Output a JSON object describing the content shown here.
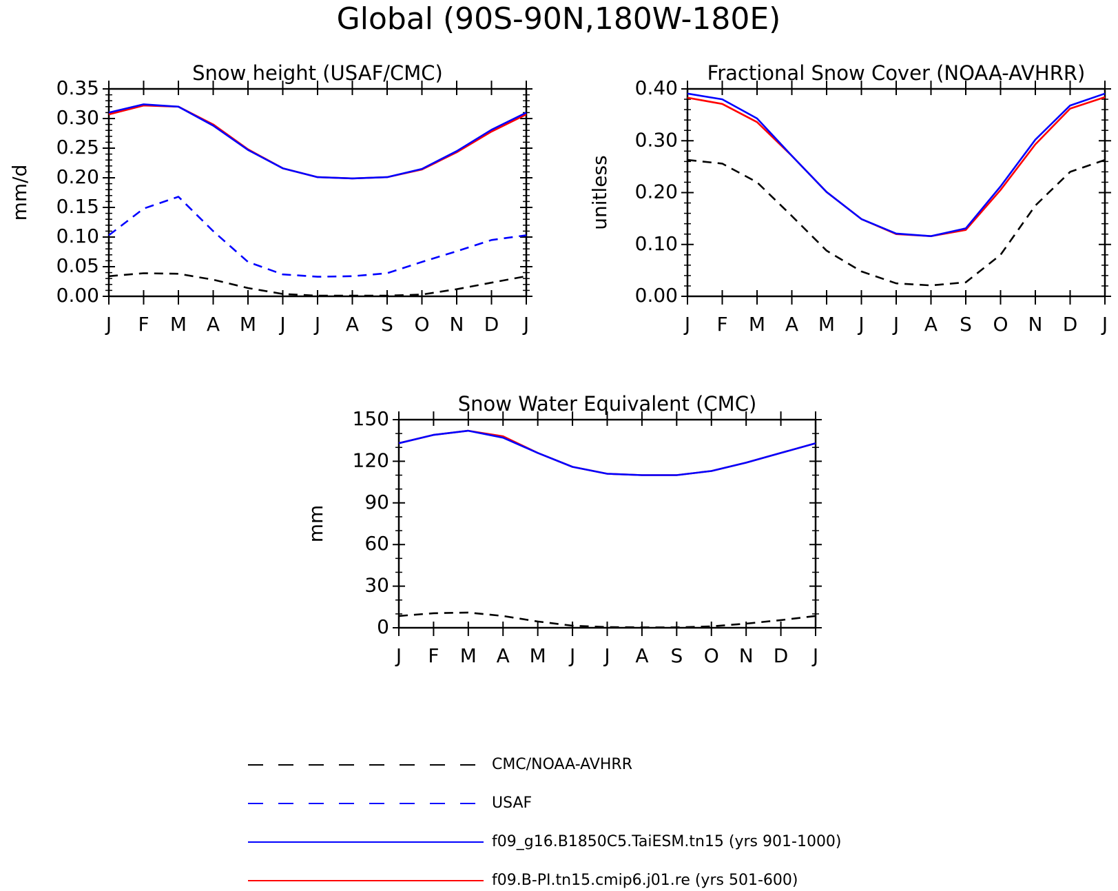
{
  "main_title": "Global (90S-90N,180W-180E)",
  "month_labels": [
    "J",
    "F",
    "M",
    "A",
    "M",
    "J",
    "J",
    "A",
    "S",
    "O",
    "N",
    "D",
    "J"
  ],
  "legend": [
    {
      "label": "CMC/NOAA-AVHRR",
      "color": "#000000",
      "dashed": true
    },
    {
      "label": "USAF",
      "color": "#0000ff",
      "dashed": true
    },
    {
      "label": "f09_g16.B1850C5.TaiESM.tn15 (yrs 901-1000)",
      "color": "#0000ff",
      "dashed": false
    },
    {
      "label": "f09.B-PI.tn15.cmip6.j01.re (yrs 501-600)",
      "color": "#ff0000",
      "dashed": false
    }
  ],
  "chart_data": [
    {
      "type": "line",
      "title": "Snow height (USAF/CMC)",
      "ylabel": "mm/d",
      "xlabel": "",
      "ylim": [
        0,
        0.35
      ],
      "yticks": [
        "0.00",
        "0.05",
        "0.10",
        "0.15",
        "0.20",
        "0.25",
        "0.30",
        "0.35"
      ],
      "x": [
        "J",
        "F",
        "M",
        "A",
        "M",
        "J",
        "J",
        "A",
        "S",
        "O",
        "N",
        "D",
        "J"
      ],
      "series": [
        {
          "name": "CMC/NOAA-AVHRR",
          "color": "#000000",
          "dashed": true,
          "values": [
            0.034,
            0.039,
            0.038,
            0.028,
            0.014,
            0.004,
            0.001,
            0.001,
            0.001,
            0.003,
            0.012,
            0.023,
            0.034
          ]
        },
        {
          "name": "USAF",
          "color": "#0000ff",
          "dashed": true,
          "values": [
            0.103,
            0.148,
            0.168,
            0.11,
            0.058,
            0.037,
            0.033,
            0.034,
            0.039,
            0.058,
            0.076,
            0.095,
            0.103
          ]
        },
        {
          "name": "f09.B-PI.tn15.cmip6.j01.re (yrs 501-600)",
          "color": "#ff0000",
          "dashed": false,
          "values": [
            0.307,
            0.322,
            0.32,
            0.29,
            0.248,
            0.216,
            0.201,
            0.199,
            0.201,
            0.214,
            0.243,
            0.278,
            0.307
          ]
        },
        {
          "name": "f09_g16.B1850C5.TaiESM.tn15 (yrs 901-1000)",
          "color": "#0000ff",
          "dashed": false,
          "values": [
            0.31,
            0.324,
            0.32,
            0.288,
            0.247,
            0.216,
            0.201,
            0.199,
            0.201,
            0.215,
            0.245,
            0.281,
            0.31
          ]
        }
      ]
    },
    {
      "type": "line",
      "title": "Fractional Snow Cover (NOAA-AVHRR)",
      "ylabel": "unitless",
      "xlabel": "",
      "ylim": [
        0,
        0.4
      ],
      "yticks": [
        "0.00",
        "0.10",
        "0.20",
        "0.30",
        "0.40"
      ],
      "x": [
        "J",
        "F",
        "M",
        "A",
        "M",
        "J",
        "J",
        "A",
        "S",
        "O",
        "N",
        "D",
        "J"
      ],
      "series": [
        {
          "name": "CMC/NOAA-AVHRR",
          "color": "#000000",
          "dashed": true,
          "values": [
            0.263,
            0.256,
            0.22,
            0.155,
            0.088,
            0.048,
            0.025,
            0.021,
            0.027,
            0.08,
            0.175,
            0.24,
            0.263
          ]
        },
        {
          "name": "f09.B-PI.tn15.cmip6.j01.re (yrs 501-600)",
          "color": "#ff0000",
          "dashed": false,
          "values": [
            0.383,
            0.371,
            0.336,
            0.271,
            0.201,
            0.149,
            0.12,
            0.116,
            0.128,
            0.205,
            0.293,
            0.362,
            0.384
          ]
        },
        {
          "name": "f09_g16.B1850C5.TaiESM.tn15 (yrs 901-1000)",
          "color": "#0000ff",
          "dashed": false,
          "values": [
            0.391,
            0.38,
            0.343,
            0.271,
            0.201,
            0.149,
            0.121,
            0.116,
            0.131,
            0.212,
            0.302,
            0.368,
            0.391
          ]
        }
      ]
    },
    {
      "type": "line",
      "title": "Snow Water Equivalent (CMC)",
      "ylabel": "mm",
      "xlabel": "",
      "ylim": [
        0,
        150
      ],
      "yticks": [
        "0",
        "30",
        "60",
        "90",
        "120",
        "150"
      ],
      "x": [
        "J",
        "F",
        "M",
        "A",
        "M",
        "J",
        "J",
        "A",
        "S",
        "O",
        "N",
        "D",
        "J"
      ],
      "series": [
        {
          "name": "CMC/NOAA-AVHRR",
          "color": "#000000",
          "dashed": true,
          "values": [
            8.5,
            10.5,
            11.0,
            8.5,
            4.5,
            1.5,
            0.5,
            0.3,
            0.3,
            1.0,
            3.0,
            5.5,
            8.5
          ]
        },
        {
          "name": "f09.B-PI.tn15.cmip6.j01.re (yrs 501-600)",
          "color": "#ff0000",
          "dashed": false,
          "values": [
            133,
            139,
            142,
            138,
            126,
            116,
            111,
            110,
            110,
            113,
            119,
            126,
            133
          ]
        },
        {
          "name": "f09_g16.B1850C5.TaiESM.tn15 (yrs 901-1000)",
          "color": "#0000ff",
          "dashed": false,
          "values": [
            133,
            139,
            142,
            137,
            126,
            116,
            111,
            110,
            110,
            113,
            119,
            126,
            133
          ]
        }
      ]
    }
  ]
}
